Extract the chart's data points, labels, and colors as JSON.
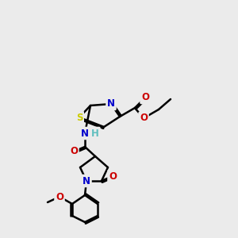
{
  "bg_color": "#ebebeb",
  "bond_color": "#000000",
  "bond_width": 1.8,
  "atom_colors": {
    "C": "#000000",
    "N": "#0000cc",
    "O": "#cc0000",
    "S": "#cccc00",
    "H": "#5fbfbf"
  },
  "font_size": 8.5
}
